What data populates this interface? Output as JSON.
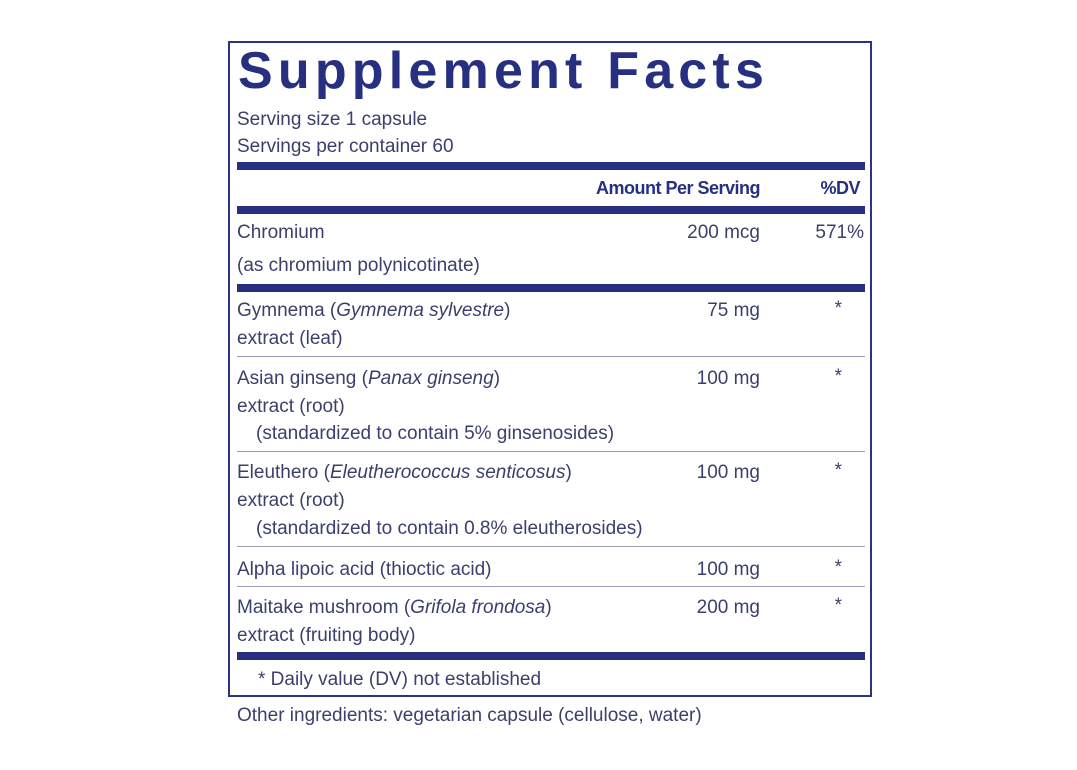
{
  "title": "Supplement Facts",
  "serving_size": "Serving size  1 capsule",
  "servings_per_container": "Servings per container  60",
  "header": {
    "amount": "Amount Per Serving",
    "dv": "%DV"
  },
  "chromium": {
    "name": "Chromium",
    "sub": "(as chromium polynicotinate)",
    "amount": "200 mcg",
    "dv": "571%"
  },
  "rows": [
    {
      "name": "Gymnema (",
      "latin": "Gymnema sylvestre",
      "close": ")",
      "line2": "extract (leaf)",
      "amount": "75 mg",
      "dv": "*"
    },
    {
      "name": "Asian ginseng (",
      "latin": "Panax ginseng",
      "close": ")",
      "line2": "extract (root)",
      "line3": "(standardized to contain 5% ginsenosides)",
      "amount": "100 mg",
      "dv": "*"
    },
    {
      "name": "Eleuthero (",
      "latin": "Eleutherococcus senticosus",
      "close": ")",
      "line2": "extract (root)",
      "line3": "(standardized to contain 0.8% eleutherosides)",
      "amount": "100 mg",
      "dv": "*"
    },
    {
      "name": "Alpha lipoic acid (thioctic acid)",
      "amount": "100 mg",
      "dv": "*"
    },
    {
      "name": "Maitake mushroom (",
      "latin": "Grifola frondosa",
      "close": ")",
      "line2": "extract (fruiting body)",
      "amount": "200 mg",
      "dv": "*"
    }
  ],
  "footnote": "* Daily value (DV) not established",
  "other_ingredients": "Other ingredients: vegetarian capsule (cellulose, water)",
  "colors": {
    "navy": "#262f80",
    "text": "#3b3f6b"
  }
}
